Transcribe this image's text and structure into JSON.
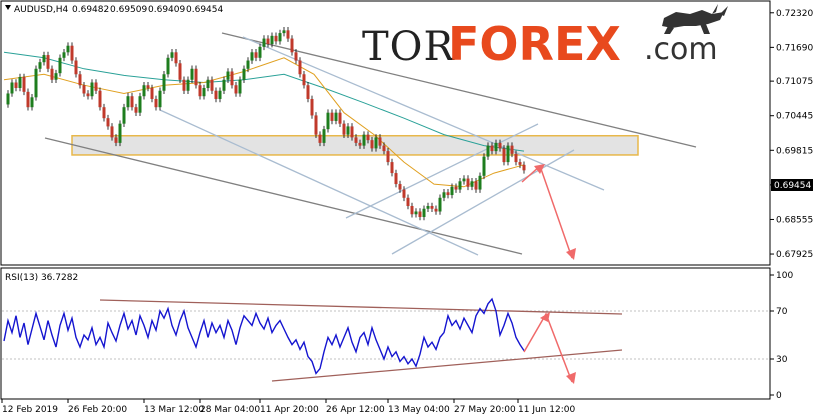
{
  "chart_data": [
    {
      "type": "line",
      "symbol_label": "AUDUSD,H4",
      "ohlc": [
        "0.69482",
        "0.69509",
        "0.69409",
        "0.69454"
      ],
      "current_price": "0.69454",
      "y_ticks": [
        "0.72320",
        "0.71690",
        "0.71075",
        "0.70445",
        "0.69815",
        "0.69185",
        "0.68555",
        "0.67925"
      ],
      "ylim": [
        0.6778,
        0.7248
      ],
      "x_ticks": [
        "12 Feb 2019",
        "26 Feb 20:00",
        "13 Mar 12:00",
        "28 Mar 04:00",
        "11 Apr 20:00",
        "26 Apr 12:00",
        "13 May 04:00",
        "27 May 20:00",
        "11 Jun 12:00"
      ],
      "close_path": [
        [
          0,
          0.7065
        ],
        [
          4,
          0.7085
        ],
        [
          8,
          0.7105
        ],
        [
          12,
          0.7095
        ],
        [
          16,
          0.7115
        ],
        [
          20,
          0.7088
        ],
        [
          24,
          0.706
        ],
        [
          28,
          0.7078
        ],
        [
          32,
          0.713
        ],
        [
          36,
          0.7142
        ],
        [
          40,
          0.7155
        ],
        [
          44,
          0.713
        ],
        [
          48,
          0.711
        ],
        [
          52,
          0.7122
        ],
        [
          56,
          0.715
        ],
        [
          60,
          0.716
        ],
        [
          64,
          0.7172
        ],
        [
          68,
          0.7145
        ],
        [
          72,
          0.712
        ],
        [
          76,
          0.71
        ],
        [
          80,
          0.7085
        ],
        [
          84,
          0.708
        ],
        [
          88,
          0.7105
        ],
        [
          92,
          0.709
        ],
        [
          96,
          0.706
        ],
        [
          100,
          0.704
        ],
        [
          104,
          0.7025
        ],
        [
          108,
          0.7005
        ],
        [
          112,
          0.6995
        ],
        [
          116,
          0.703
        ],
        [
          120,
          0.706
        ],
        [
          124,
          0.708
        ],
        [
          128,
          0.706
        ],
        [
          132,
          0.705
        ],
        [
          136,
          0.708
        ],
        [
          140,
          0.71
        ],
        [
          144,
          0.7095
        ],
        [
          148,
          0.7075
        ],
        [
          152,
          0.706
        ],
        [
          156,
          0.709
        ],
        [
          160,
          0.712
        ],
        [
          164,
          0.715
        ],
        [
          168,
          0.716
        ],
        [
          172,
          0.714
        ],
        [
          176,
          0.711
        ],
        [
          180,
          0.709
        ],
        [
          184,
          0.711
        ],
        [
          188,
          0.713
        ],
        [
          192,
          0.71
        ],
        [
          196,
          0.708
        ],
        [
          200,
          0.7095
        ],
        [
          204,
          0.711
        ],
        [
          208,
          0.709
        ],
        [
          212,
          0.7075
        ],
        [
          216,
          0.709
        ],
        [
          220,
          0.711
        ],
        [
          224,
          0.7125
        ],
        [
          228,
          0.71
        ],
        [
          232,
          0.7085
        ],
        [
          236,
          0.711
        ],
        [
          240,
          0.713
        ],
        [
          244,
          0.7145
        ],
        [
          248,
          0.716
        ],
        [
          252,
          0.715
        ],
        [
          256,
          0.717
        ],
        [
          260,
          0.7185
        ],
        [
          264,
          0.7175
        ],
        [
          268,
          0.719
        ],
        [
          272,
          0.718
        ],
        [
          276,
          0.7195
        ],
        [
          280,
          0.72
        ],
        [
          284,
          0.7185
        ],
        [
          288,
          0.716
        ],
        [
          292,
          0.7145
        ],
        [
          296,
          0.712
        ],
        [
          300,
          0.71
        ],
        [
          304,
          0.7075
        ],
        [
          308,
          0.7045
        ],
        [
          312,
          0.701
        ],
        [
          316,
          0.6995
        ],
        [
          320,
          0.702
        ],
        [
          324,
          0.705
        ],
        [
          328,
          0.7035
        ],
        [
          332,
          0.705
        ],
        [
          336,
          0.703
        ],
        [
          340,
          0.701
        ],
        [
          344,
          0.7025
        ],
        [
          348,
          0.7005
        ],
        [
          352,
          0.6995
        ],
        [
          356,
          0.699
        ],
        [
          360,
          0.701
        ],
        [
          364,
          0.7
        ],
        [
          368,
          0.6985
        ],
        [
          372,
          0.7005
        ],
        [
          376,
          0.699
        ],
        [
          380,
          0.698
        ],
        [
          384,
          0.696
        ],
        [
          388,
          0.694
        ],
        [
          392,
          0.692
        ],
        [
          396,
          0.691
        ],
        [
          400,
          0.6895
        ],
        [
          404,
          0.688
        ],
        [
          408,
          0.6865
        ],
        [
          412,
          0.687
        ],
        [
          416,
          0.686
        ],
        [
          420,
          0.6875
        ],
        [
          424,
          0.688
        ],
        [
          428,
          0.6875
        ],
        [
          432,
          0.687
        ],
        [
          436,
          0.6895
        ],
        [
          440,
          0.6905
        ],
        [
          444,
          0.69
        ],
        [
          448,
          0.6915
        ],
        [
          452,
          0.691
        ],
        [
          456,
          0.6925
        ],
        [
          460,
          0.693
        ],
        [
          464,
          0.6915
        ],
        [
          468,
          0.6925
        ],
        [
          472,
          0.691
        ],
        [
          476,
          0.6935
        ],
        [
          480,
          0.697
        ],
        [
          484,
          0.699
        ],
        [
          488,
          0.698
        ],
        [
          492,
          0.6995
        ],
        [
          496,
          0.6985
        ],
        [
          500,
          0.696
        ],
        [
          504,
          0.699
        ],
        [
          508,
          0.6975
        ],
        [
          512,
          0.696
        ],
        [
          516,
          0.6955
        ],
        [
          520,
          0.6945
        ]
      ],
      "ma_slow": [
        [
          0,
          0.716
        ],
        [
          40,
          0.715
        ],
        [
          80,
          0.713
        ],
        [
          120,
          0.7118
        ],
        [
          160,
          0.711
        ],
        [
          200,
          0.7105
        ],
        [
          240,
          0.711
        ],
        [
          280,
          0.712
        ],
        [
          320,
          0.7095
        ],
        [
          360,
          0.7068
        ],
        [
          400,
          0.704
        ],
        [
          440,
          0.701
        ],
        [
          480,
          0.699
        ],
        [
          520,
          0.698
        ]
      ],
      "ma_fast": [
        [
          0,
          0.711
        ],
        [
          40,
          0.712
        ],
        [
          80,
          0.71
        ],
        [
          120,
          0.7085
        ],
        [
          160,
          0.71
        ],
        [
          200,
          0.7105
        ],
        [
          240,
          0.7125
        ],
        [
          280,
          0.715
        ],
        [
          310,
          0.712
        ],
        [
          340,
          0.705
        ],
        [
          370,
          0.701
        ],
        [
          400,
          0.696
        ],
        [
          430,
          0.692
        ],
        [
          460,
          0.6915
        ],
        [
          490,
          0.694
        ],
        [
          520,
          0.6955
        ]
      ],
      "support_zone": [
        0.6973,
        0.7008
      ]
    },
    {
      "type": "line",
      "title": "RSI(13) 36.7282",
      "y_ticks": [
        "100",
        "70",
        "30",
        "0"
      ],
      "ylim": [
        0,
        100
      ],
      "levels": [
        70,
        30
      ],
      "values": [
        [
          0,
          45
        ],
        [
          4,
          62
        ],
        [
          8,
          52
        ],
        [
          12,
          66
        ],
        [
          16,
          48
        ],
        [
          20,
          60
        ],
        [
          24,
          42
        ],
        [
          28,
          55
        ],
        [
          32,
          68
        ],
        [
          36,
          57
        ],
        [
          40,
          46
        ],
        [
          44,
          62
        ],
        [
          48,
          50
        ],
        [
          52,
          40
        ],
        [
          56,
          58
        ],
        [
          60,
          68
        ],
        [
          64,
          54
        ],
        [
          68,
          64
        ],
        [
          72,
          48
        ],
        [
          76,
          40
        ],
        [
          80,
          50
        ],
        [
          84,
          46
        ],
        [
          88,
          56
        ],
        [
          92,
          42
        ],
        [
          96,
          48
        ],
        [
          100,
          40
        ],
        [
          104,
          60
        ],
        [
          108,
          52
        ],
        [
          112,
          45
        ],
        [
          116,
          58
        ],
        [
          120,
          68
        ],
        [
          124,
          55
        ],
        [
          128,
          62
        ],
        [
          132,
          50
        ],
        [
          136,
          66
        ],
        [
          140,
          58
        ],
        [
          144,
          48
        ],
        [
          148,
          62
        ],
        [
          152,
          54
        ],
        [
          156,
          70
        ],
        [
          160,
          64
        ],
        [
          164,
          72
        ],
        [
          168,
          58
        ],
        [
          172,
          50
        ],
        [
          176,
          62
        ],
        [
          180,
          70
        ],
        [
          184,
          56
        ],
        [
          188,
          48
        ],
        [
          192,
          40
        ],
        [
          196,
          52
        ],
        [
          200,
          62
        ],
        [
          204,
          48
        ],
        [
          208,
          60
        ],
        [
          212,
          52
        ],
        [
          216,
          58
        ],
        [
          220,
          48
        ],
        [
          224,
          62
        ],
        [
          228,
          54
        ],
        [
          232,
          42
        ],
        [
          236,
          56
        ],
        [
          240,
          66
        ],
        [
          244,
          62
        ],
        [
          248,
          58
        ],
        [
          252,
          68
        ],
        [
          256,
          60
        ],
        [
          260,
          55
        ],
        [
          264,
          64
        ],
        [
          268,
          52
        ],
        [
          272,
          58
        ],
        [
          276,
          62
        ],
        [
          280,
          55
        ],
        [
          284,
          48
        ],
        [
          288,
          42
        ],
        [
          292,
          46
        ],
        [
          296,
          38
        ],
        [
          300,
          44
        ],
        [
          304,
          32
        ],
        [
          308,
          28
        ],
        [
          312,
          18
        ],
        [
          316,
          22
        ],
        [
          320,
          36
        ],
        [
          324,
          48
        ],
        [
          328,
          42
        ],
        [
          332,
          50
        ],
        [
          336,
          40
        ],
        [
          340,
          48
        ],
        [
          344,
          56
        ],
        [
          348,
          44
        ],
        [
          352,
          36
        ],
        [
          356,
          48
        ],
        [
          360,
          52
        ],
        [
          364,
          42
        ],
        [
          368,
          56
        ],
        [
          372,
          46
        ],
        [
          376,
          38
        ],
        [
          380,
          30
        ],
        [
          384,
          40
        ],
        [
          388,
          32
        ],
        [
          392,
          36
        ],
        [
          396,
          28
        ],
        [
          400,
          32
        ],
        [
          404,
          26
        ],
        [
          408,
          30
        ],
        [
          412,
          24
        ],
        [
          416,
          34
        ],
        [
          420,
          48
        ],
        [
          424,
          40
        ],
        [
          428,
          44
        ],
        [
          432,
          38
        ],
        [
          436,
          48
        ],
        [
          440,
          52
        ],
        [
          444,
          66
        ],
        [
          448,
          58
        ],
        [
          452,
          62
        ],
        [
          456,
          55
        ],
        [
          460,
          64
        ],
        [
          464,
          58
        ],
        [
          468,
          52
        ],
        [
          472,
          66
        ],
        [
          476,
          72
        ],
        [
          480,
          68
        ],
        [
          484,
          76
        ],
        [
          488,
          80
        ],
        [
          492,
          70
        ],
        [
          496,
          50
        ],
        [
          500,
          58
        ],
        [
          504,
          68
        ],
        [
          508,
          60
        ],
        [
          512,
          48
        ],
        [
          516,
          42
        ],
        [
          520,
          37
        ]
      ]
    }
  ],
  "logo": {
    "tor": "TOR",
    "forex": "FOREX",
    "com": ".com"
  }
}
